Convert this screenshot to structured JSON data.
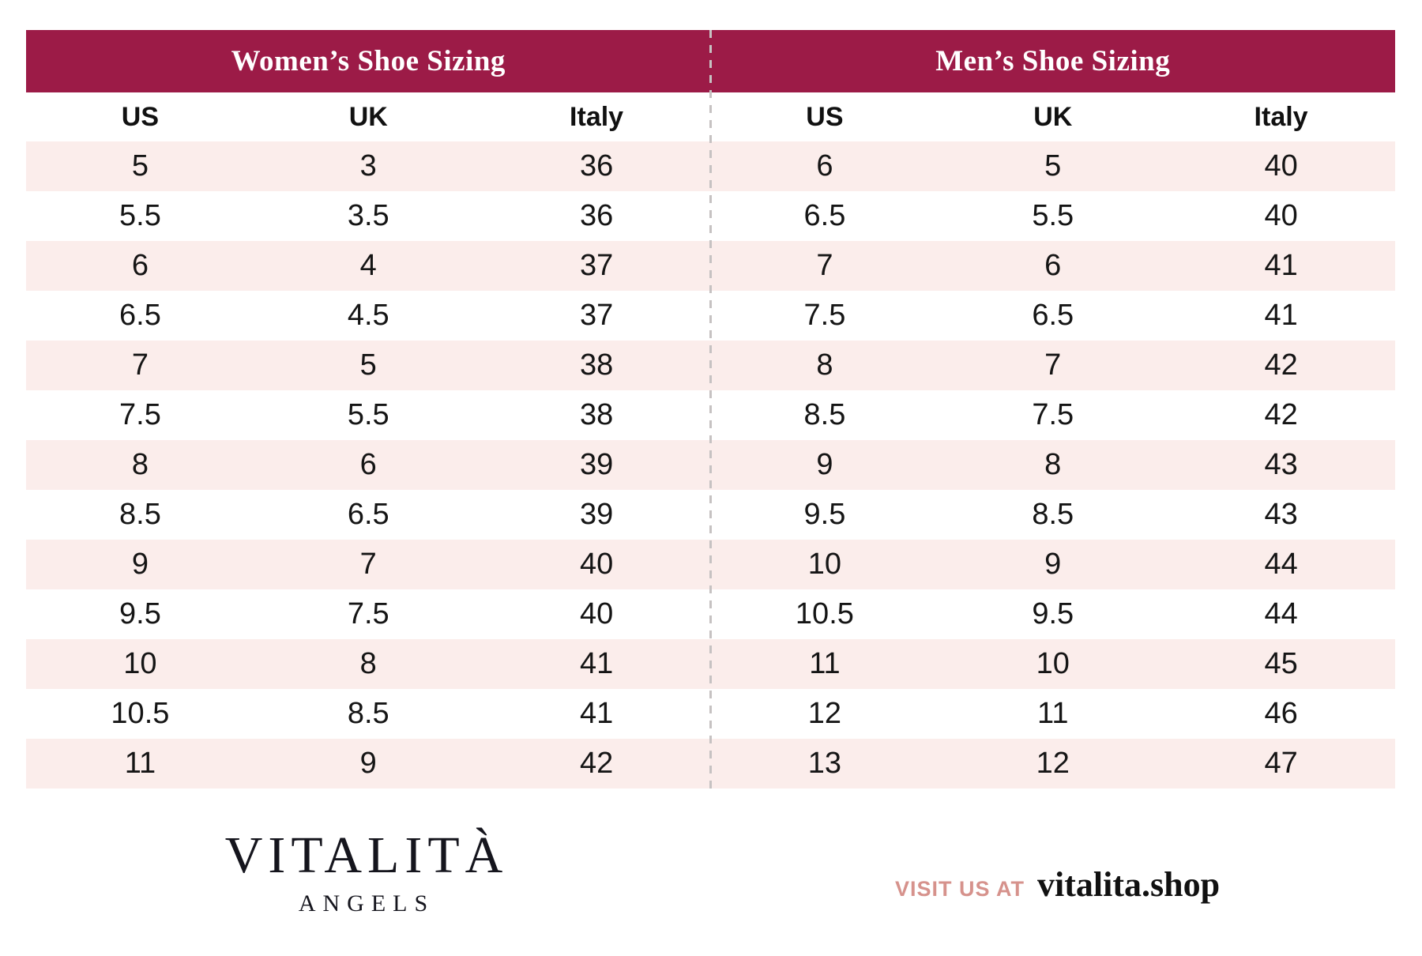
{
  "colors": {
    "header_bg": "#9c1b47",
    "header_text": "#ffffff",
    "row_alt_pink": "#fbedeb",
    "row_white": "#ffffff",
    "body_text": "#151515",
    "divider_dash": "#c6c2c2",
    "visit_label_salmon": "#d6928c"
  },
  "women": {
    "title": "Women’s Shoe Sizing",
    "columns": [
      "US",
      "UK",
      "Italy"
    ],
    "rows": [
      [
        "5",
        "3",
        "36"
      ],
      [
        "5.5",
        "3.5",
        "36"
      ],
      [
        "6",
        "4",
        "37"
      ],
      [
        "6.5",
        "4.5",
        "37"
      ],
      [
        "7",
        "5",
        "38"
      ],
      [
        "7.5",
        "5.5",
        "38"
      ],
      [
        "8",
        "6",
        "39"
      ],
      [
        "8.5",
        "6.5",
        "39"
      ],
      [
        "9",
        "7",
        "40"
      ],
      [
        "9.5",
        "7.5",
        "40"
      ],
      [
        "10",
        "8",
        "41"
      ],
      [
        "10.5",
        "8.5",
        "41"
      ],
      [
        "11",
        "9",
        "42"
      ]
    ]
  },
  "men": {
    "title": "Men’s Shoe Sizing",
    "columns": [
      "US",
      "UK",
      "Italy"
    ],
    "rows": [
      [
        "6",
        "5",
        "40"
      ],
      [
        "6.5",
        "5.5",
        "40"
      ],
      [
        "7",
        "6",
        "41"
      ],
      [
        "7.5",
        "6.5",
        "41"
      ],
      [
        "8",
        "7",
        "42"
      ],
      [
        "8.5",
        "7.5",
        "42"
      ],
      [
        "9",
        "8",
        "43"
      ],
      [
        "9.5",
        "8.5",
        "43"
      ],
      [
        "10",
        "9",
        "44"
      ],
      [
        "10.5",
        "9.5",
        "44"
      ],
      [
        "11",
        "10",
        "45"
      ],
      [
        "12",
        "11",
        "46"
      ],
      [
        "13",
        "12",
        "47"
      ]
    ]
  },
  "footer": {
    "brand_name": "VITALITÀ",
    "brand_sub": "ANGELS",
    "visit_label": "VISIT US AT",
    "visit_url": "vitalita.shop"
  }
}
